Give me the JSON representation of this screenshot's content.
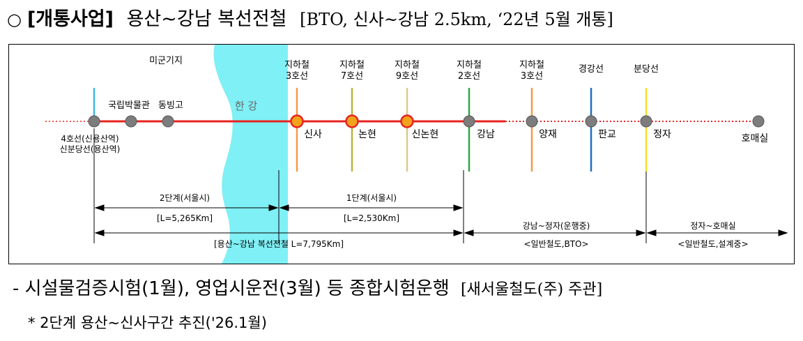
{
  "heading": {
    "bullet": "○",
    "tag": "[개통사업]",
    "title": "용산~강남 복선전철",
    "detail": "[BTO, 신사~강남 2.5km, ‘22년 5월 개통]"
  },
  "diagram": {
    "area_label": "미군기지",
    "river_label": "한 강",
    "stations": [
      {
        "id": "yongsan",
        "name": "4호선(신용산역)\n신분당선(용산역)",
        "type": "gray",
        "transfer": {
          "label": "",
          "color": "#3fb6d9"
        }
      },
      {
        "id": "museum",
        "name": "국립박물관",
        "type": "gray",
        "transfer": null
      },
      {
        "id": "dongbinggo",
        "name": "동빙고",
        "type": "gray",
        "transfer": null
      },
      {
        "id": "sinsa",
        "name": "신사",
        "type": "orange",
        "transfer": {
          "label": "지하철\n3호선",
          "color": "#f29a4a"
        }
      },
      {
        "id": "nonhyeon",
        "name": "논현",
        "type": "orange",
        "transfer": {
          "label": "지하철\n7호선",
          "color": "#b7b53a"
        }
      },
      {
        "id": "sinnonhyeon",
        "name": "신논현",
        "type": "orange",
        "transfer": {
          "label": "지하철\n9호선",
          "color": "#d8c78e"
        }
      },
      {
        "id": "gangnam",
        "name": "강남",
        "type": "gray",
        "transfer": {
          "label": "지하철\n2호선",
          "color": "#2aa84a"
        }
      },
      {
        "id": "yangjae",
        "name": "양재",
        "type": "gray",
        "transfer": {
          "label": "지하철\n3호선",
          "color": "#f29a4a"
        }
      },
      {
        "id": "pangyo",
        "name": "판교",
        "type": "gray",
        "transfer": {
          "label": "경강선",
          "color": "#1f6fc0"
        }
      },
      {
        "id": "jeongja",
        "name": "정자",
        "type": "gray",
        "transfer": {
          "label": "분당선",
          "color": "#f2e21e"
        }
      },
      {
        "id": "homaesil",
        "name": "호매실",
        "type": "gray",
        "transfer": null
      }
    ],
    "spans": [
      {
        "id": "phase2",
        "label": "2단계(서울시)",
        "sub": "[L=5,265Km]"
      },
      {
        "id": "phase1",
        "label": "1단계(서울시)",
        "sub": "[L=2,530Km]"
      },
      {
        "id": "gangnam_jeongja",
        "label": "강남~정자(운행중)",
        "sub": "<일반철도,BTO>"
      },
      {
        "id": "jeongja_homaesil",
        "label": "정자~호매실",
        "sub": "<일반철도,설계중>"
      },
      {
        "id": "total",
        "label": "[용산~강남 복선전철 L=7,795Km]",
        "sub": ""
      }
    ],
    "colors": {
      "main_line": "#e8231f",
      "river": "#7ff0f5",
      "dotted": "#e8231f",
      "gray_station": "#7d7d7d",
      "orange_station": "#f3a21b"
    }
  },
  "notes": {
    "line1_a": "- 시설물검증시험(1월), 영업시운전(3월) 등 종합시험운행",
    "line1_b": "[새서울철도(주) 주관]",
    "line2": "* 2단계 용산~신사구간 추진('26.1월)"
  }
}
